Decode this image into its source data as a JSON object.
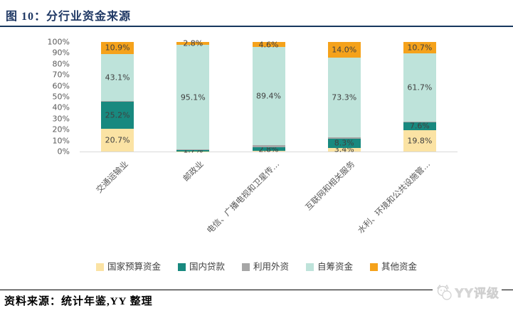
{
  "header": {
    "title": "图 10：分行业资金来源"
  },
  "footer": {
    "source": "资料来源：统计年鉴,YY 整理"
  },
  "watermark": {
    "text": "YY评级",
    "logo_icon": "cat-logo-icon"
  },
  "colors": {
    "title_navy": "#1F3864",
    "title_rule": "#17375E",
    "axis_line": "#D9D9D9",
    "tick_text": "#595959",
    "segment_label_text": "#404040",
    "category_text": "#595959",
    "legend_text": "#404040",
    "watermark_gray": "#D6D6D6"
  },
  "chart_data": {
    "type": "bar",
    "stacked": true,
    "grid": false,
    "legend_position": "bottom",
    "title": "分行业资金来源",
    "xlabel": "",
    "ylabel": "",
    "ylim": [
      0,
      100
    ],
    "yticks": [
      "0%",
      "10%",
      "20%",
      "30%",
      "40%",
      "50%",
      "60%",
      "70%",
      "80%",
      "90%",
      "100%"
    ],
    "categories": [
      "交通运输业",
      "邮政业",
      "电信、广播电视和卫星传…",
      "互联网和相关服务",
      "水利、环境和公共设施管…"
    ],
    "series": [
      {
        "name": "国家预算资金",
        "color": "#FBE3A4",
        "values": [
          20.7,
          0.2,
          0.8,
          3.4,
          19.8
        ],
        "labels": [
          "20.7%",
          "",
          "",
          "3.4%",
          "19.8%"
        ]
      },
      {
        "name": "国内贷款",
        "color": "#18897F",
        "values": [
          25.2,
          1.7,
          2.8,
          8.3,
          7.6
        ],
        "labels": [
          "25.2%",
          "1.7%",
          "2.8%",
          "8.3%",
          "7.6%"
        ]
      },
      {
        "name": "利用外资",
        "color": "#A6A6A6",
        "values": [
          0.1,
          0.2,
          2.4,
          1.0,
          0.2
        ],
        "labels": [
          "",
          "",
          "",
          "",
          ""
        ]
      },
      {
        "name": "自筹资金",
        "color": "#BEE3DA",
        "values": [
          43.1,
          95.1,
          89.4,
          73.3,
          61.7
        ],
        "labels": [
          "43.1%",
          "95.1%",
          "89.4%",
          "73.3%",
          "61.7%"
        ]
      },
      {
        "name": "其他资金",
        "color": "#F5A21B",
        "values": [
          10.9,
          2.8,
          4.6,
          14.0,
          10.7
        ],
        "labels": [
          "10.9%",
          "2.8%",
          "4.6%",
          "14.0%",
          "10.7%"
        ]
      }
    ]
  }
}
